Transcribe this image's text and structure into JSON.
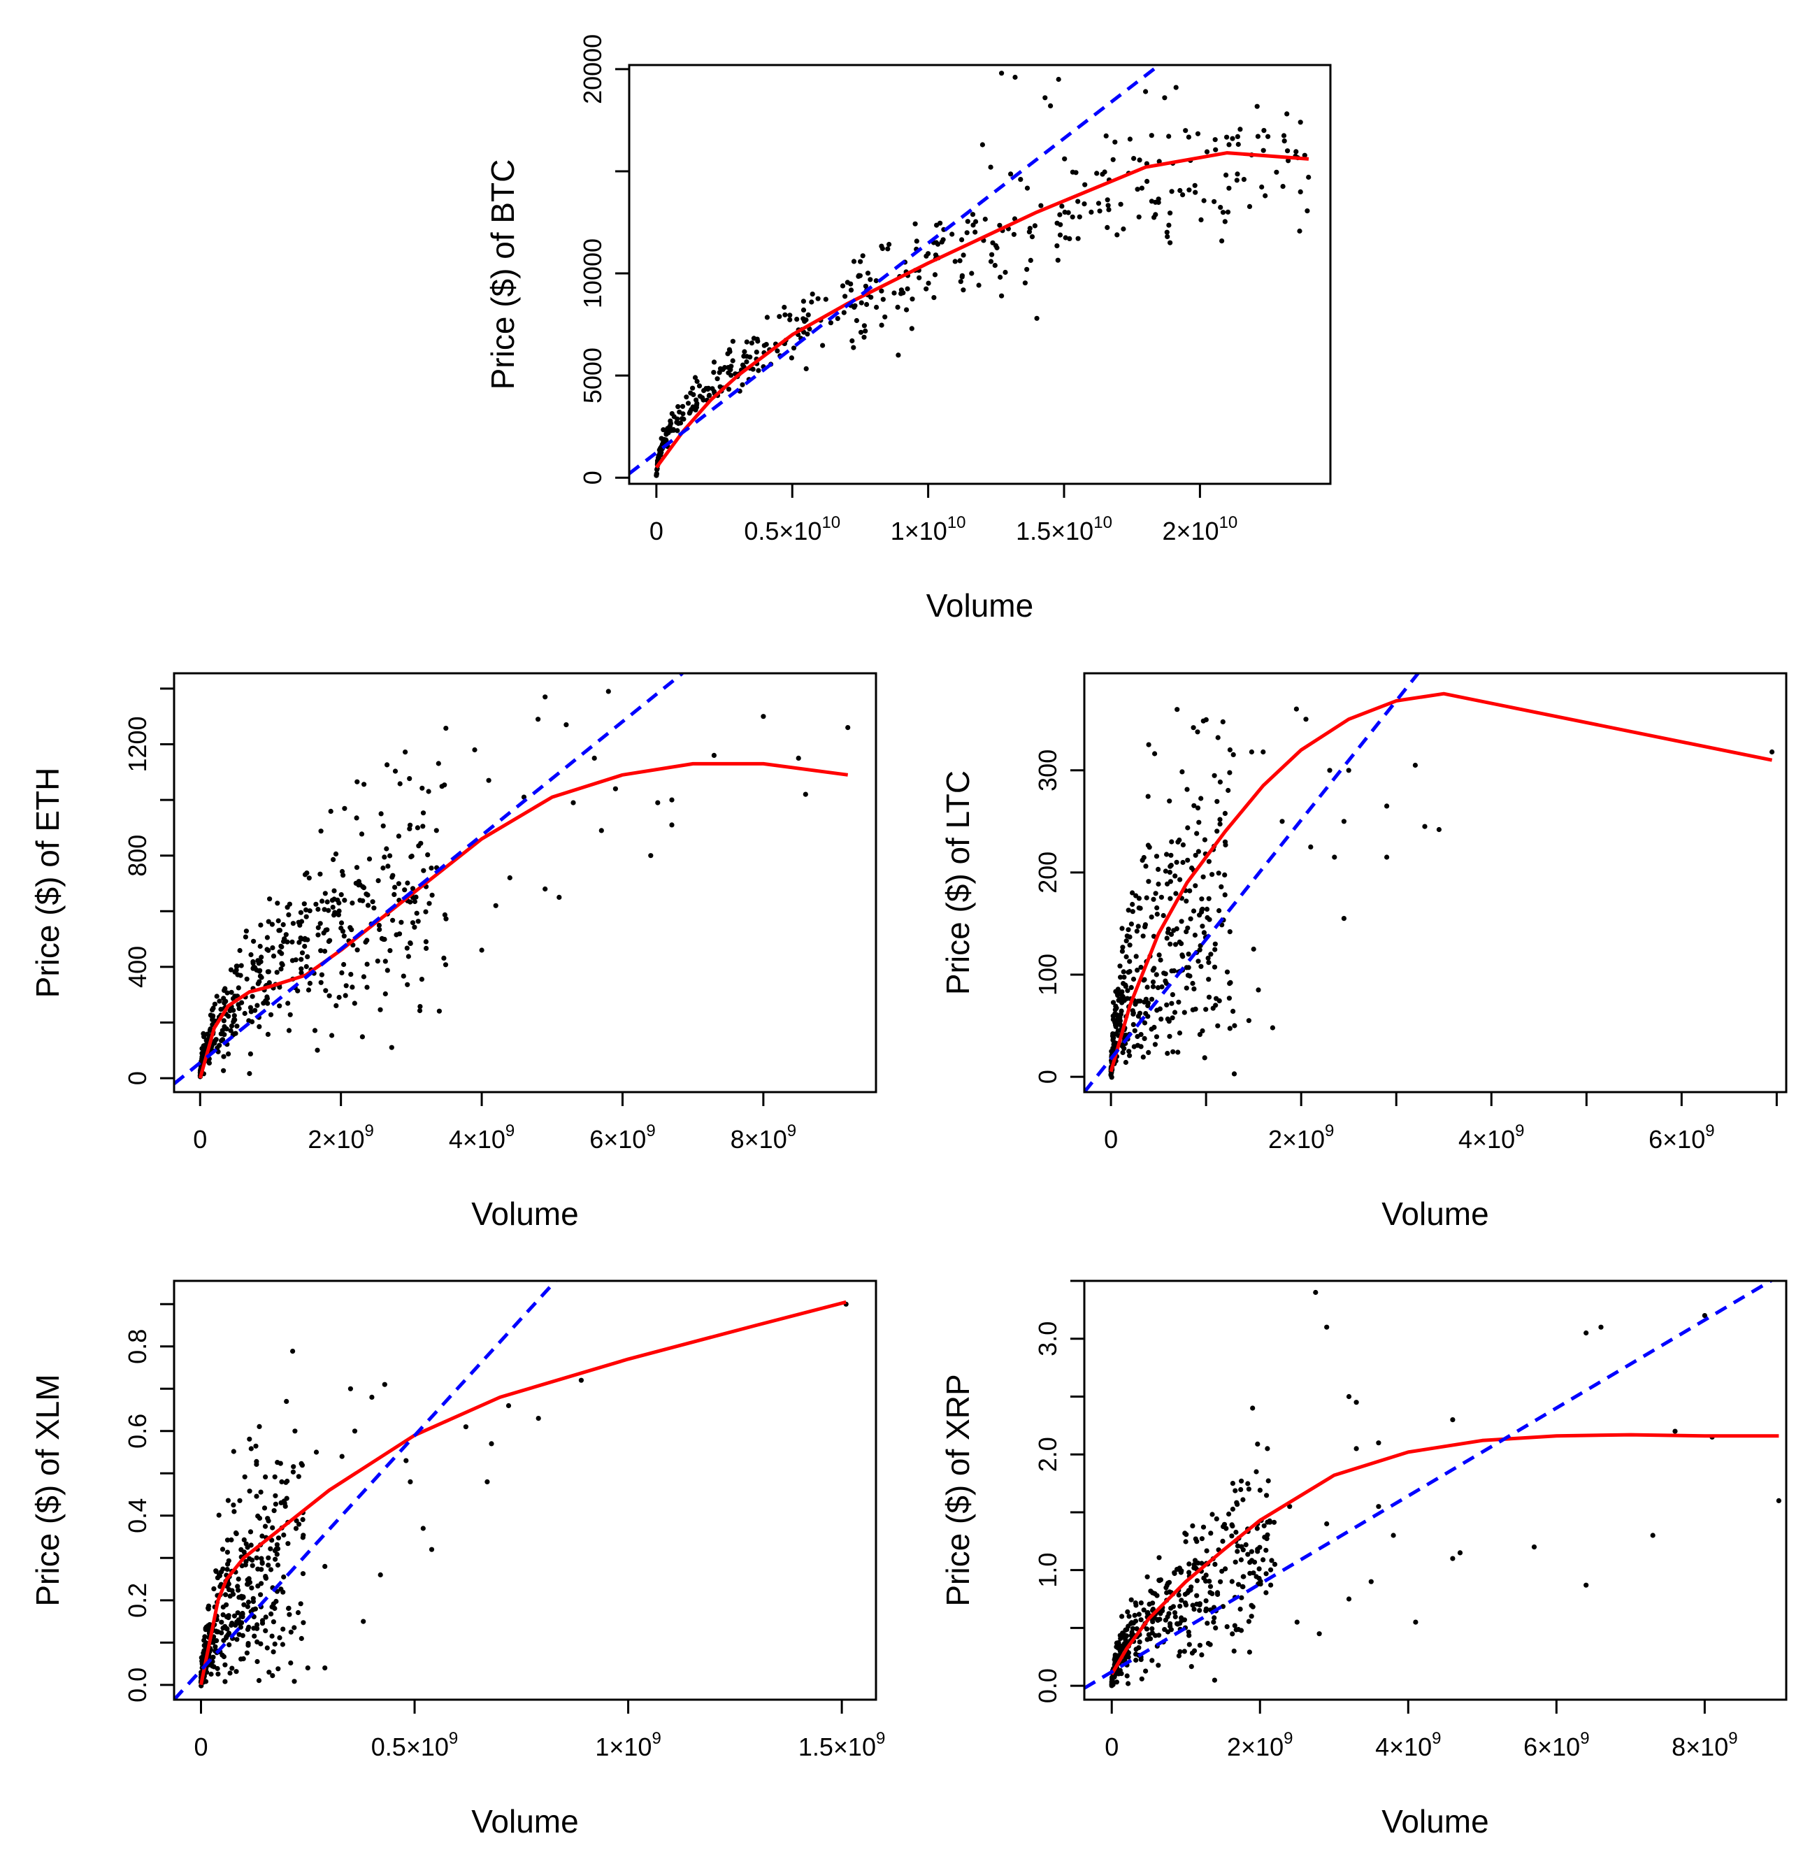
{
  "figure_title": "",
  "chart_data": [
    {
      "type": "scatter",
      "id": "btc",
      "title": "",
      "xlabel": "Volume",
      "ylabel": "Price ($) of BTC",
      "xlim": [
        -1000000000.0,
        24800000000.0
      ],
      "ylim": [
        -300,
        20200
      ],
      "x_ticks": [
        {
          "v": 0,
          "m": "0",
          "e": ""
        },
        {
          "v": 5000000000.0,
          "m": "0.5×10",
          "e": "10"
        },
        {
          "v": 10000000000.0,
          "m": "1×10",
          "e": "10"
        },
        {
          "v": 15000000000.0,
          "m": "1.5×10",
          "e": "10"
        },
        {
          "v": 20000000000.0,
          "m": "2×10",
          "e": "10"
        }
      ],
      "y_ticks": [
        {
          "v": 0,
          "label": "0"
        },
        {
          "v": 5000,
          "label": "5000"
        },
        {
          "v": 10000,
          "label": "10000"
        },
        {
          "v": 20000,
          "label": "20000"
        }
      ],
      "y_minor_ticks": [
        15000
      ],
      "legend": "none",
      "gen": {
        "seed": 11,
        "n": 420,
        "curve": "sqrt",
        "xmax": 24000000000.0,
        "ymax": 16000,
        "noise": 0.12
      },
      "points": [
        [
          12700000000.0,
          19800
        ],
        [
          13200000000.0,
          19600
        ],
        [
          14800000000.0,
          19500
        ],
        [
          14300000000.0,
          18600
        ],
        [
          14500000000.0,
          18200
        ],
        [
          18000000000.0,
          18900
        ],
        [
          18700000000.0,
          18600
        ],
        [
          23700000000.0,
          17400
        ],
        [
          22500000000.0,
          16700
        ],
        [
          21200000000.0,
          16600
        ],
        [
          21900000000.0,
          15800
        ],
        [
          22400000000.0,
          13800
        ],
        [
          16200000000.0,
          14900
        ],
        [
          16600000000.0,
          13600
        ],
        [
          16000000000.0,
          13000
        ],
        [
          18800000000.0,
          11800
        ],
        [
          18900000000.0,
          11500
        ],
        [
          13400000000.0,
          14600
        ],
        [
          12300000000.0,
          15200
        ],
        [
          12000000000.0,
          16300
        ],
        [
          15200000000.0,
          11700
        ],
        [
          14000000000.0,
          7800
        ],
        [
          12700000000.0,
          8900
        ],
        [
          11600000000.0,
          10000
        ],
        [
          11200000000.0,
          9600
        ],
        [
          8900000000.0,
          6000
        ],
        [
          9400000000.0,
          7300
        ],
        [
          7200000000.0,
          6700
        ]
      ],
      "lines": [
        {
          "name": "smooth fit",
          "color": "#ff0000",
          "dash": false,
          "x": [
            0,
            1000000000.0,
            2000000000.0,
            3000000000.0,
            5000000000.0,
            7000000000.0,
            10000000000.0,
            14000000000.0,
            18000000000.0,
            21000000000.0,
            24000000000.0
          ],
          "y": [
            500,
            2300,
            3800,
            5000,
            7000,
            8500,
            10500,
            13000,
            15200,
            15900,
            15600
          ]
        },
        {
          "name": "linear fit",
          "color": "#0000ff",
          "dash": true,
          "x": [
            -1000000000.0,
            18500000000.0
          ],
          "y": [
            200,
            20200
          ]
        }
      ]
    },
    {
      "type": "scatter",
      "id": "eth",
      "title": "",
      "xlabel": "Volume",
      "ylabel": "Price ($) of ETH",
      "xlim": [
        -370000000.0,
        9600000000.0
      ],
      "ylim": [
        -50,
        1455
      ],
      "x_ticks": [
        {
          "v": 0,
          "m": "0",
          "e": ""
        },
        {
          "v": 2000000000.0,
          "m": "2×10",
          "e": "9"
        },
        {
          "v": 4000000000.0,
          "m": "4×10",
          "e": "9"
        },
        {
          "v": 6000000000.0,
          "m": "6×10",
          "e": "9"
        },
        {
          "v": 8000000000.0,
          "m": "8×10",
          "e": "9"
        }
      ],
      "y_ticks": [
        {
          "v": 0,
          "label": "0"
        },
        {
          "v": 400,
          "label": "400"
        },
        {
          "v": 800,
          "label": "800"
        },
        {
          "v": 1200,
          "label": "1200"
        }
      ],
      "y_minor_ticks": [
        200,
        600,
        1000,
        1400
      ],
      "legend": "none",
      "gen": {
        "seed": 23,
        "n": 460,
        "curve": "sqrt",
        "xmax": 3500000000.0,
        "ymax": 750,
        "noise": 0.3
      },
      "points": [
        [
          4900000000.0,
          1370
        ],
        [
          5800000000.0,
          1390
        ],
        [
          4800000000.0,
          1290
        ],
        [
          5200000000.0,
          1270
        ],
        [
          5600000000.0,
          1150
        ],
        [
          7300000000.0,
          1160
        ],
        [
          8000000000.0,
          1300
        ],
        [
          8500000000.0,
          1150
        ],
        [
          9200000000.0,
          1260
        ],
        [
          8600000000.0,
          1020
        ],
        [
          6700000000.0,
          1000
        ],
        [
          6700000000.0,
          910
        ],
        [
          6500000000.0,
          990
        ],
        [
          6400000000.0,
          800
        ],
        [
          5700000000.0,
          890
        ],
        [
          5900000000.0,
          1040
        ],
        [
          5300000000.0,
          990
        ],
        [
          5100000000.0,
          650
        ],
        [
          4900000000.0,
          680
        ],
        [
          4600000000.0,
          1010
        ],
        [
          4000000000.0,
          460
        ],
        [
          4200000000.0,
          620
        ],
        [
          4400000000.0,
          720
        ],
        [
          3900000000.0,
          1180
        ],
        [
          4100000000.0,
          1070
        ]
      ],
      "lines": [
        {
          "name": "smooth fit",
          "color": "#ff0000",
          "dash": false,
          "x": [
            0,
            200000000.0,
            400000000.0,
            700000000.0,
            1000000000.0,
            1500000000.0,
            2000000000.0,
            3000000000.0,
            4000000000.0,
            5000000000.0,
            6000000000.0,
            7000000000.0,
            8000000000.0,
            9200000000.0
          ],
          "y": [
            0,
            180,
            260,
            310,
            330,
            370,
            460,
            660,
            860,
            1010,
            1090,
            1130,
            1130,
            1090
          ]
        },
        {
          "name": "linear fit",
          "color": "#0000ff",
          "dash": true,
          "x": [
            -370000000.0,
            6850000000.0
          ],
          "y": [
            -20,
            1455
          ]
        }
      ]
    },
    {
      "type": "scatter",
      "id": "ltc",
      "title": "",
      "xlabel": "Volume",
      "ylabel": "Price ($) of LTC",
      "xlim": [
        -280000000.0,
        7100000000.0
      ],
      "ylim": [
        -15,
        395
      ],
      "x_ticks": [
        {
          "v": 0,
          "m": "0",
          "e": ""
        },
        {
          "v": 2000000000.0,
          "m": "2×10",
          "e": "9"
        },
        {
          "v": 4000000000.0,
          "m": "4×10",
          "e": "9"
        },
        {
          "v": 6000000000.0,
          "m": "6×10",
          "e": "9"
        }
      ],
      "x_minor_ticks": [
        1000000000.0,
        3000000000.0,
        5000000000.0,
        7000000000.0
      ],
      "y_ticks": [
        {
          "v": 0,
          "label": "0"
        },
        {
          "v": 100,
          "label": "100"
        },
        {
          "v": 200,
          "label": "200"
        },
        {
          "v": 300,
          "label": "300"
        }
      ],
      "legend": "none",
      "gen": {
        "seed": 37,
        "n": 400,
        "curve": "mix",
        "xmax": 1300000000.0,
        "ymax": 280,
        "noise": 0.35
      },
      "points": [
        [
          6950000000.0,
          318
        ],
        [
          1950000000.0,
          360
        ],
        [
          2050000000.0,
          350
        ],
        [
          1600000000.0,
          318
        ],
        [
          1480000000.0,
          318
        ],
        [
          2300000000.0,
          300
        ],
        [
          2500000000.0,
          300
        ],
        [
          3200000000.0,
          305
        ],
        [
          2900000000.0,
          265
        ],
        [
          3300000000.0,
          245
        ],
        [
          3450000000.0,
          242
        ],
        [
          2450000000.0,
          250
        ],
        [
          2100000000.0,
          225
        ],
        [
          2350000000.0,
          215
        ],
        [
          2900000000.0,
          215
        ],
        [
          2450000000.0,
          155
        ],
        [
          1800000000.0,
          250
        ],
        [
          1500000000.0,
          125
        ],
        [
          1550000000.0,
          85
        ],
        [
          1450000000.0,
          55
        ],
        [
          1700000000.0,
          48
        ],
        [
          1300000000.0,
          50
        ],
        [
          1050000000.0,
          120
        ],
        [
          1100000000.0,
          70
        ]
      ],
      "lines": [
        {
          "name": "smooth fit",
          "color": "#ff0000",
          "dash": false,
          "x": [
            0,
            200000000.0,
            500000000.0,
            800000000.0,
            1200000000.0,
            1600000000.0,
            2000000000.0,
            2500000000.0,
            3000000000.0,
            3500000000.0,
            6950000000.0
          ],
          "y": [
            5,
            70,
            140,
            190,
            240,
            285,
            320,
            350,
            368,
            375,
            310
          ]
        },
        {
          "name": "linear fit",
          "color": "#0000ff",
          "dash": true,
          "x": [
            -280000000.0,
            3230000000.0
          ],
          "y": [
            -15,
            395
          ]
        }
      ]
    },
    {
      "type": "scatter",
      "id": "xlm",
      "title": "",
      "xlabel": "Volume",
      "ylabel": "Price ($) of XLM",
      "xlim": [
        -63000000.0,
        1580000000.0
      ],
      "ylim": [
        -0.035,
        0.955
      ],
      "x_ticks": [
        {
          "v": 0,
          "m": "0",
          "e": ""
        },
        {
          "v": 500000000.0,
          "m": "0.5×10",
          "e": "9"
        },
        {
          "v": 1000000000.0,
          "m": "1×10",
          "e": "9"
        },
        {
          "v": 1500000000.0,
          "m": "1.5×10",
          "e": "9"
        }
      ],
      "y_ticks": [
        {
          "v": 0,
          "label": "0.0"
        },
        {
          "v": 0.2,
          "label": "0.2"
        },
        {
          "v": 0.4,
          "label": "0.4"
        },
        {
          "v": 0.6,
          "label": "0.6"
        },
        {
          "v": 0.8,
          "label": "0.8"
        }
      ],
      "y_minor_ticks": [
        0.1,
        0.3,
        0.5,
        0.7,
        0.9
      ],
      "legend": "none",
      "gen": {
        "seed": 53,
        "n": 380,
        "curve": "mix",
        "xmax": 240000000.0,
        "ymax": 0.45,
        "noise": 0.4
      },
      "points": [
        [
          1510000000.0,
          0.9
        ],
        [
          890000000.0,
          0.72
        ],
        [
          790000000.0,
          0.63
        ],
        [
          720000000.0,
          0.66
        ],
        [
          680000000.0,
          0.57
        ],
        [
          670000000.0,
          0.48
        ],
        [
          620000000.0,
          0.61
        ],
        [
          540000000.0,
          0.32
        ],
        [
          520000000.0,
          0.37
        ],
        [
          490000000.0,
          0.48
        ],
        [
          480000000.0,
          0.53
        ],
        [
          430000000.0,
          0.71
        ],
        [
          400000000.0,
          0.68
        ],
        [
          350000000.0,
          0.7
        ],
        [
          420000000.0,
          0.26
        ],
        [
          380000000.0,
          0.15
        ],
        [
          360000000.0,
          0.6
        ],
        [
          290000000.0,
          0.28
        ],
        [
          290000000.0,
          0.04
        ],
        [
          250000000.0,
          0.04
        ],
        [
          330000000.0,
          0.54
        ],
        [
          270000000.0,
          0.55
        ],
        [
          200000000.0,
          0.67
        ],
        [
          220000000.0,
          0.6
        ]
      ],
      "lines": [
        {
          "name": "smooth fit",
          "color": "#ff0000",
          "dash": false,
          "x": [
            0,
            20000000.0,
            40000000.0,
            60000000.0,
            100000000.0,
            200000000.0,
            300000000.0,
            500000000.0,
            700000000.0,
            1000000000.0,
            1300000000.0,
            1510000000.0
          ],
          "y": [
            0,
            0.1,
            0.2,
            0.25,
            0.3,
            0.38,
            0.46,
            0.59,
            0.68,
            0.77,
            0.85,
            0.905
          ]
        },
        {
          "name": "linear fit",
          "color": "#0000ff",
          "dash": true,
          "x": [
            -63000000.0,
            830000000.0
          ],
          "y": [
            -0.035,
            0.955
          ]
        }
      ]
    },
    {
      "type": "scatter",
      "id": "xrp",
      "title": "",
      "xlabel": "Volume",
      "ylabel": "Price ($) of XRP",
      "xlim": [
        -370000000.0,
        9100000000.0
      ],
      "ylim": [
        -0.12,
        3.5
      ],
      "x_ticks": [
        {
          "v": 0,
          "m": "0",
          "e": ""
        },
        {
          "v": 2000000000.0,
          "m": "2×10",
          "e": "9"
        },
        {
          "v": 4000000000.0,
          "m": "4×10",
          "e": "9"
        },
        {
          "v": 6000000000.0,
          "m": "6×10",
          "e": "9"
        },
        {
          "v": 8000000000.0,
          "m": "8×10",
          "e": "9"
        }
      ],
      "y_ticks": [
        {
          "v": 0,
          "label": "0.0"
        },
        {
          "v": 1,
          "label": "1.0"
        },
        {
          "v": 2,
          "label": "2.0"
        },
        {
          "v": 3,
          "label": "3.0"
        }
      ],
      "y_minor_ticks": [
        0.5,
        1.5,
        2.5,
        3.5
      ],
      "legend": "none",
      "gen": {
        "seed": 71,
        "n": 400,
        "curve": "sqrt",
        "xmax": 2200000000.0,
        "ymax": 1.2,
        "noise": 0.35
      },
      "points": [
        [
          2750000000.0,
          3.4
        ],
        [
          2900000000.0,
          3.1
        ],
        [
          6600000000.0,
          3.1
        ],
        [
          6400000000.0,
          3.05
        ],
        [
          8000000000.0,
          3.2
        ],
        [
          7600000000.0,
          2.2
        ],
        [
          8100000000.0,
          2.15
        ],
        [
          9000000000.0,
          1.6
        ],
        [
          7300000000.0,
          1.3
        ],
        [
          6400000000.0,
          0.87
        ],
        [
          5700000000.0,
          1.2
        ],
        [
          4600000000.0,
          2.3
        ],
        [
          4600000000.0,
          1.1
        ],
        [
          4700000000.0,
          1.15
        ],
        [
          4100000000.0,
          0.55
        ],
        [
          3600000000.0,
          1.55
        ],
        [
          3600000000.0,
          2.1
        ],
        [
          3300000000.0,
          2.05
        ],
        [
          3200000000.0,
          2.5
        ],
        [
          3300000000.0,
          2.45
        ],
        [
          3200000000.0,
          0.75
        ],
        [
          3500000000.0,
          0.9
        ],
        [
          2900000000.0,
          1.4
        ],
        [
          2800000000.0,
          0.45
        ],
        [
          2400000000.0,
          1.55
        ],
        [
          2500000000.0,
          0.55
        ],
        [
          2100000000.0,
          2.05
        ],
        [
          1900000000.0,
          2.4
        ],
        [
          1950000000.0,
          1.85
        ],
        [
          1850000000.0,
          1.7
        ],
        [
          1650000000.0,
          0.3
        ],
        [
          1400000000.0,
          0.5
        ],
        [
          2200000000.0,
          1.05
        ],
        [
          3800000000.0,
          1.3
        ]
      ],
      "lines": [
        {
          "name": "smooth fit",
          "color": "#ff0000",
          "dash": false,
          "x": [
            0,
            200000000.0,
            500000000.0,
            1000000000.0,
            1500000000.0,
            2000000000.0,
            3000000000.0,
            4000000000.0,
            5000000000.0,
            6000000000.0,
            7000000000.0,
            8000000000.0,
            9000000000.0
          ],
          "y": [
            0.1,
            0.32,
            0.58,
            0.9,
            1.17,
            1.43,
            1.82,
            2.02,
            2.12,
            2.16,
            2.17,
            2.16,
            2.16
          ]
        },
        {
          "name": "linear fit",
          "color": "#0000ff",
          "dash": true,
          "x": [
            -370000000.0,
            9100000000.0
          ],
          "y": [
            -0.02,
            3.58
          ]
        }
      ]
    }
  ]
}
